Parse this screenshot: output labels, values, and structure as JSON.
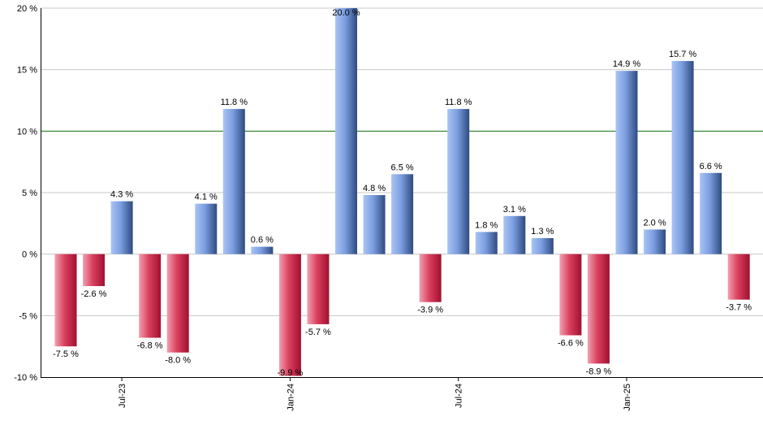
{
  "chart_data": {
    "type": "bar",
    "title": "",
    "xlabel": "",
    "ylabel": "",
    "ylim": [
      -10,
      20
    ],
    "yticks": [
      20,
      15,
      10,
      5,
      0,
      -5,
      -10
    ],
    "ytick_labels": [
      "20 %",
      "15 %",
      "10 %",
      "5 %",
      "0 %",
      "-5 %",
      "-10 %"
    ],
    "grid": true,
    "reference_line": 10,
    "values": [
      -7.5,
      -2.6,
      4.3,
      -6.8,
      -8.0,
      4.1,
      11.8,
      0.6,
      -9.9,
      -5.7,
      20.0,
      4.8,
      6.5,
      -3.9,
      11.8,
      1.8,
      3.1,
      1.3,
      -6.6,
      -8.9,
      14.9,
      2.0,
      15.7,
      6.6,
      -3.7
    ],
    "data_labels": [
      "-7.5 %",
      "-2.6 %",
      "4.3 %",
      "-6.8 %",
      "-8.0 %",
      "4.1 %",
      "11.8 %",
      "0.6 %",
      "-9.9 %",
      "-5.7 %",
      "20.0 %",
      "4.8 %",
      "6.5 %",
      "-3.9 %",
      "11.8 %",
      "1.8 %",
      "3.1 %",
      "1.3 %",
      "-6.6 %",
      "-8.9 %",
      "14.9 %",
      "2.0 %",
      "15.7 %",
      "6.6 %",
      "-3.7 %"
    ],
    "x_tick_labels": [
      {
        "label": "Jul-23",
        "index": 2
      },
      {
        "label": "Jan-24",
        "index": 8
      },
      {
        "label": "Jul-24",
        "index": 14
      },
      {
        "label": "Jan-25",
        "index": 20
      }
    ],
    "colors": {
      "positive_light": "#a9c4f5",
      "positive_dark": "#2e4a80",
      "negative_light": "#f2a0b0",
      "negative_dark": "#a0102e",
      "grid": "#c8c8c8",
      "reference_line": "#1a7a1a",
      "axis": "#000000"
    }
  }
}
